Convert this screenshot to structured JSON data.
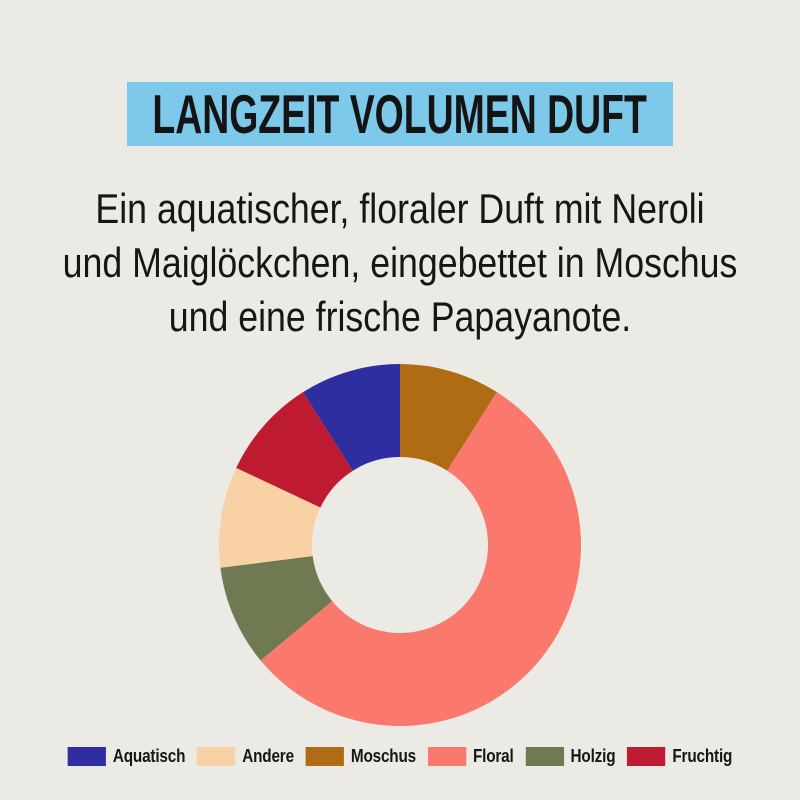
{
  "title": "LANGZEIT VOLUMEN DUFT",
  "description": {
    "lines": [
      "Ein aquatischer, floraler Duft mit Neroli",
      "und Maiglöckchen, eingebettet in Moschus",
      "und eine frische Papayanote."
    ]
  },
  "colors": {
    "background": "#EBEAE5",
    "title_highlight": "#7CC9EA",
    "text": "#161616"
  },
  "chart_data": {
    "type": "pie",
    "subtype": "donut",
    "title": "LANGZEIT VOLUMEN DUFT",
    "start_angle_deg": 0,
    "direction": "clockwise",
    "inner_radius_ratio": 0.48,
    "outer_radius_px": 181,
    "inner_radius_px": 88,
    "segments": [
      {
        "label": "Moschus",
        "value": 9,
        "color": "#B06C15"
      },
      {
        "label": "Floral",
        "value": 55,
        "color": "#FB786C"
      },
      {
        "label": "Holzig",
        "value": 9,
        "color": "#6F7A53"
      },
      {
        "label": "Andere",
        "value": 9,
        "color": "#F8D2A5"
      },
      {
        "label": "Fruchtig",
        "value": 9,
        "color": "#BE1B32"
      },
      {
        "label": "Aquatisch",
        "value": 9,
        "color": "#2E2EA0"
      }
    ],
    "legend": [
      {
        "label": "Aquatisch",
        "color": "#2E2EA0"
      },
      {
        "label": "Andere",
        "color": "#F8D2A5"
      },
      {
        "label": "Moschus",
        "color": "#B06C15"
      },
      {
        "label": "Floral",
        "color": "#FB786C"
      },
      {
        "label": "Holzig",
        "color": "#6F7A53"
      },
      {
        "label": "Fruchtig",
        "color": "#BE1B32"
      }
    ],
    "legend_position": "bottom"
  }
}
